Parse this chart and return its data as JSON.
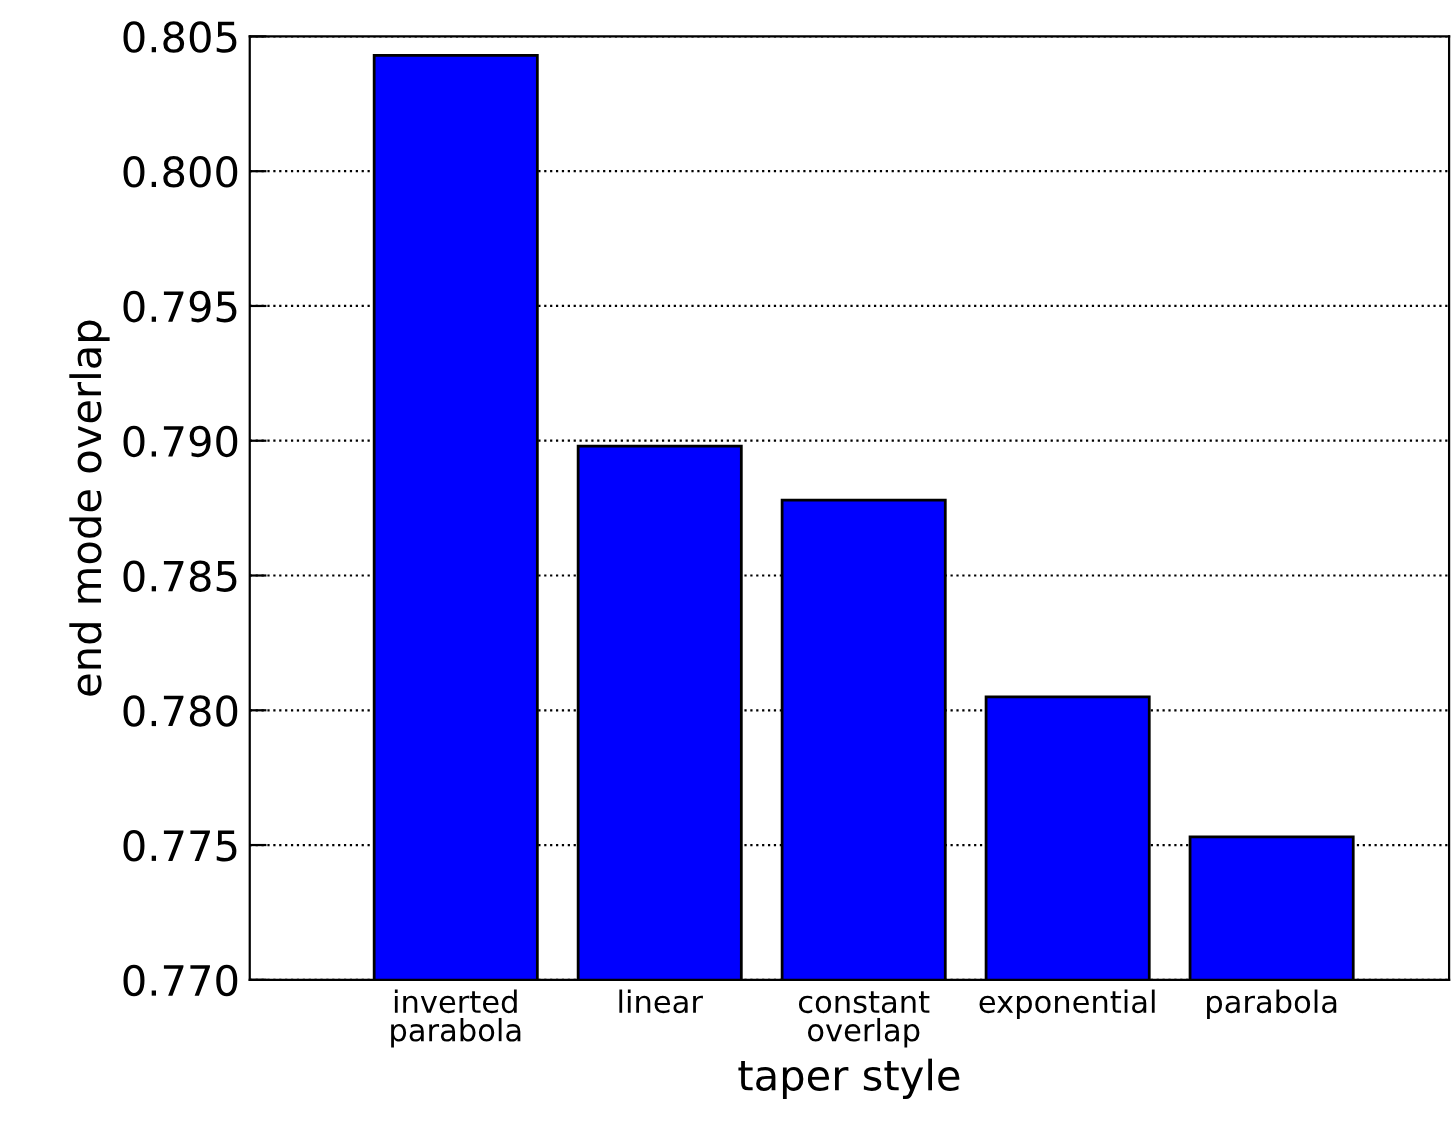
{
  "chart_data": {
    "type": "bar",
    "xlabel": "taper style",
    "ylabel": "end mode overlap",
    "categories": [
      "inverted\nparabola",
      "linear",
      "constant\noverlap",
      "exponential",
      "parabola"
    ],
    "values": [
      0.8043,
      0.7898,
      0.7878,
      0.7805,
      0.7753
    ],
    "color": "#0000ff",
    "ylim": [
      0.77,
      0.805
    ],
    "yticks": [
      {
        "value": 0.77,
        "label": "0.770"
      },
      {
        "value": 0.775,
        "label": "0.775"
      },
      {
        "value": 0.78,
        "label": "0.780"
      },
      {
        "value": 0.785,
        "label": "0.785"
      },
      {
        "value": 0.79,
        "label": "0.790"
      },
      {
        "value": 0.795,
        "label": "0.795"
      },
      {
        "value": 0.8,
        "label": "0.800"
      },
      {
        "value": 0.805,
        "label": "0.805"
      }
    ],
    "grid": "y"
  }
}
